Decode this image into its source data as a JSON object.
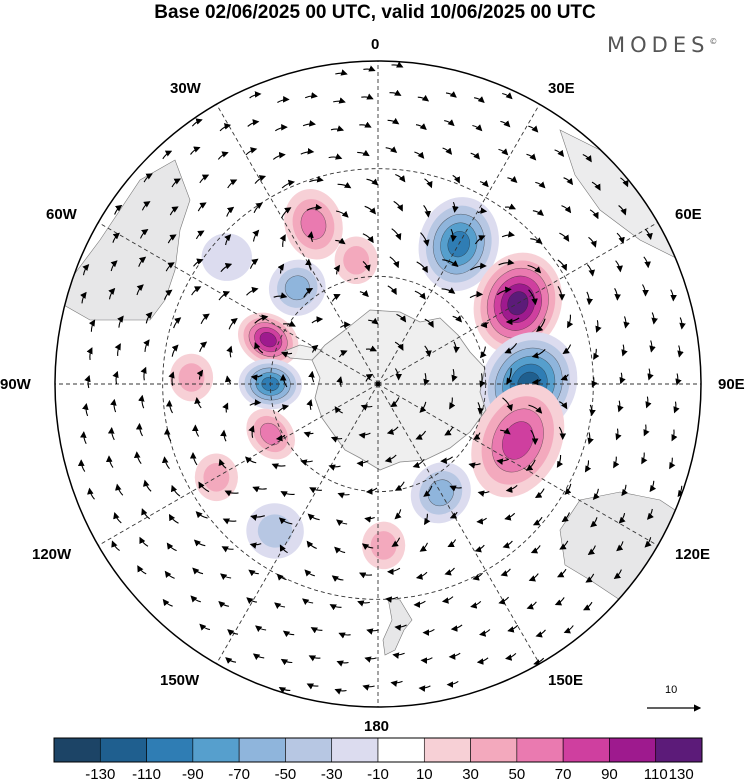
{
  "title": "Base 02/06/2025 00 UTC, valid 10/06/2025 00 UTC",
  "brand": "MODES",
  "brand_mark": "©",
  "longitude_labels": {
    "lon_0": "0",
    "lon_30e": "30E",
    "lon_60e": "60E",
    "lon_90e": "90E",
    "lon_120e": "120E",
    "lon_150e": "150E",
    "lon_180": "180",
    "lon_150w": "150W",
    "lon_120w": "120W",
    "lon_90w": "90W",
    "lon_60w": "60W",
    "lon_30w": "30W"
  },
  "reference_vector": {
    "label": "10"
  },
  "colorbar": {
    "ticks": [
      "-130",
      "-110",
      "-90",
      "-70",
      "-50",
      "-30",
      "-10",
      "10",
      "30",
      "50",
      "70",
      "90",
      "110",
      "130"
    ],
    "colors": [
      "#1c4466",
      "#1f5f8f",
      "#2f7db4",
      "#569fcd",
      "#8fb5dc",
      "#b7c7e3",
      "#dcdcef",
      "#ffffff",
      "#f7d0d6",
      "#f3a9bd",
      "#ea7ab0",
      "#cf3f9f",
      "#9e1a8e",
      "#5c1b79"
    ]
  },
  "anomalies": [
    {
      "lon": 30,
      "lat": -45,
      "rx": 11,
      "ry": 24,
      "rot": 15,
      "value": -110
    },
    {
      "lon": 60,
      "lat": -45,
      "rx": 12,
      "ry": 26,
      "rot": 20,
      "value": 130
    },
    {
      "lon": 90,
      "lat": -48,
      "rx": 13,
      "ry": 27,
      "rot": 30,
      "value": -125
    },
    {
      "lon": 112,
      "lat": -48,
      "rx": 12,
      "ry": 30,
      "rot": 25,
      "value": 90
    },
    {
      "lon": -22,
      "lat": -42,
      "rx": 8,
      "ry": 18,
      "rot": -15,
      "value": 75
    },
    {
      "lon": -40,
      "lat": -55,
      "rx": 8,
      "ry": 14,
      "rot": -40,
      "value": -60
    },
    {
      "lon": -10,
      "lat": -55,
      "rx": 6,
      "ry": 12,
      "rot": 0,
      "value": 40
    },
    {
      "lon": -68,
      "lat": -57,
      "rx": 7,
      "ry": 16,
      "rot": -60,
      "value": 100
    },
    {
      "lon": -90,
      "lat": -60,
      "rx": 7,
      "ry": 16,
      "rot": -85,
      "value": -100
    },
    {
      "lon": -88,
      "lat": -38,
      "rx": 6,
      "ry": 12,
      "rot": 0,
      "value": 40
    },
    {
      "lon": -115,
      "lat": -57,
      "rx": 6,
      "ry": 14,
      "rot": -40,
      "value": 70
    },
    {
      "lon": -145,
      "lat": -40,
      "rx": 8,
      "ry": 14,
      "rot": 10,
      "value": -50
    },
    {
      "lon": 150,
      "lat": -55,
      "rx": 8,
      "ry": 16,
      "rot": 40,
      "value": -60
    },
    {
      "lon": 178,
      "lat": -45,
      "rx": 6,
      "ry": 12,
      "rot": 0,
      "value": 40
    },
    {
      "lon": -120,
      "lat": -38,
      "rx": 6,
      "ry": 12,
      "rot": 0,
      "value": 40
    },
    {
      "lon": -50,
      "lat": -35,
      "rx": 7,
      "ry": 12,
      "rot": 0,
      "value": -30
    }
  ]
}
